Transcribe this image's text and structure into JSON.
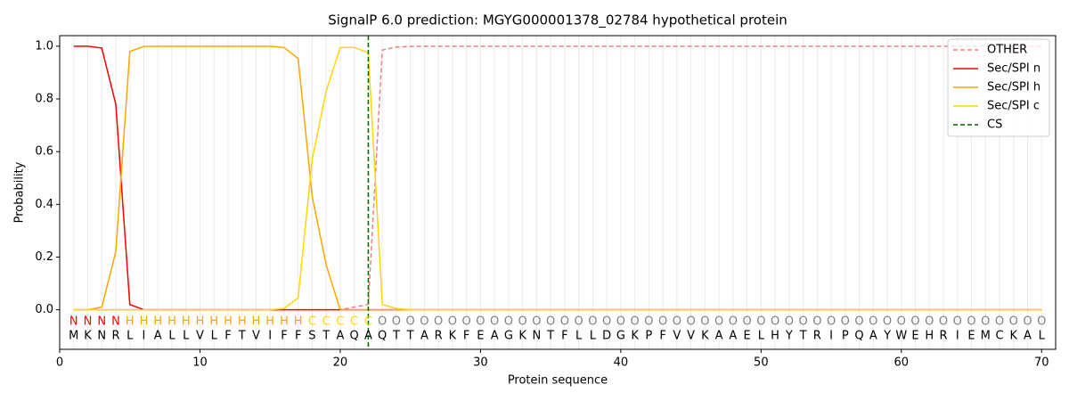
{
  "chart_data": {
    "type": "line",
    "title": "SignalP 6.0 prediction: MGYG000001378_02784 hypothetical protein",
    "xlabel": "Protein sequence",
    "ylabel": "Probability",
    "xlim": [
      0,
      71
    ],
    "ylim": [
      -0.15,
      1.04
    ],
    "xticks": [
      0,
      10,
      20,
      30,
      40,
      50,
      60,
      70
    ],
    "yticks": [
      {
        "value": 0,
        "label": "0.0"
      },
      {
        "value": 0.2,
        "label": "0.2"
      },
      {
        "value": 0.4,
        "label": "0.4"
      },
      {
        "value": 0.6,
        "label": "0.6"
      },
      {
        "value": 0.8,
        "label": "0.8"
      },
      {
        "value": 1,
        "label": "1.0"
      }
    ],
    "grid": true,
    "legend": "upper right",
    "x": [
      1,
      2,
      3,
      4,
      5,
      6,
      7,
      8,
      9,
      10,
      11,
      12,
      13,
      14,
      15,
      16,
      17,
      18,
      19,
      20,
      21,
      22,
      23,
      24,
      25,
      26,
      27,
      28,
      29,
      30,
      31,
      32,
      33,
      34,
      35,
      36,
      37,
      38,
      39,
      40,
      41,
      42,
      43,
      44,
      45,
      46,
      47,
      48,
      49,
      50,
      51,
      52,
      53,
      54,
      55,
      56,
      57,
      58,
      59,
      60,
      61,
      62,
      63,
      64,
      65,
      66,
      67,
      68,
      69,
      70
    ],
    "residues": [
      "M",
      "K",
      "N",
      "R",
      "L",
      "I",
      "A",
      "L",
      "L",
      "V",
      "L",
      "F",
      "T",
      "V",
      "I",
      "F",
      "F",
      "S",
      "T",
      "A",
      "Q",
      "A",
      "Q",
      "T",
      "T",
      "A",
      "R",
      "K",
      "F",
      "E",
      "A",
      "G",
      "K",
      "N",
      "T",
      "F",
      "L",
      "L",
      "D",
      "G",
      "K",
      "P",
      "F",
      "V",
      "V",
      "K",
      "A",
      "A",
      "E",
      "L",
      "H",
      "Y",
      "T",
      "R",
      "I",
      "P",
      "Q",
      "A",
      "Y",
      "W",
      "E",
      "H",
      "R",
      "I",
      "E",
      "M",
      "C",
      "K",
      "A",
      "L"
    ],
    "labels": [
      "N",
      "N",
      "N",
      "N",
      "H",
      "H",
      "H",
      "H",
      "H",
      "H",
      "H",
      "H",
      "H",
      "H",
      "H",
      "H",
      "H",
      "C",
      "C",
      "C",
      "C",
      "C",
      "O",
      "O",
      "O",
      "O",
      "O",
      "O",
      "O",
      "O",
      "O",
      "O",
      "O",
      "O",
      "O",
      "O",
      "O",
      "O",
      "O",
      "O",
      "O",
      "O",
      "O",
      "O",
      "O",
      "O",
      "O",
      "O",
      "O",
      "O",
      "O",
      "O",
      "O",
      "O",
      "O",
      "O",
      "O",
      "O",
      "O",
      "O",
      "O",
      "O",
      "O",
      "O",
      "O",
      "O",
      "O",
      "O",
      "O",
      "O"
    ],
    "label_colors": {
      "N": "#ff0000",
      "H": "#ffa500",
      "C": "#ffd700",
      "O": "#808080"
    },
    "series": [
      {
        "name": "OTHER",
        "color": "#f08080",
        "dashed": true,
        "values": [
          0,
          0,
          0,
          0,
          0,
          0,
          0,
          0,
          0,
          0,
          0,
          0,
          0,
          0,
          0,
          0,
          0,
          0,
          0,
          0,
          0.01,
          0.02,
          0.985,
          0.997,
          0.999,
          1,
          1,
          1,
          1,
          1,
          1,
          1,
          1,
          1,
          1,
          1,
          1,
          1,
          1,
          1,
          1,
          1,
          1,
          1,
          1,
          1,
          1,
          1,
          1,
          1,
          1,
          1,
          1,
          1,
          1,
          1,
          1,
          1,
          1,
          1,
          1,
          1,
          1,
          1,
          1,
          1,
          1,
          1,
          1,
          1
        ]
      },
      {
        "name": "Sec/SPI n",
        "color": "#ff0000",
        "dashed": false,
        "values": [
          1,
          1,
          0.993,
          0.78,
          0.02,
          0,
          0,
          0,
          0,
          0,
          0,
          0,
          0,
          0,
          0,
          0,
          0,
          0,
          0,
          0,
          0,
          0,
          0,
          0,
          0,
          0,
          0,
          0,
          0,
          0,
          0,
          0,
          0,
          0,
          0,
          0,
          0,
          0,
          0,
          0,
          0,
          0,
          0,
          0,
          0,
          0,
          0,
          0,
          0,
          0,
          0,
          0,
          0,
          0,
          0,
          0,
          0,
          0,
          0,
          0,
          0,
          0,
          0,
          0,
          0,
          0,
          0,
          0,
          0,
          0
        ]
      },
      {
        "name": "Sec/SPI h",
        "color": "#ffa500",
        "dashed": false,
        "values": [
          0,
          0,
          0.01,
          0.22,
          0.98,
          0.999,
          1,
          1,
          1,
          1,
          1,
          1,
          1,
          1,
          1,
          0.995,
          0.953,
          0.43,
          0.17,
          0,
          0,
          0,
          0,
          0,
          0,
          0,
          0,
          0,
          0,
          0,
          0,
          0,
          0,
          0,
          0,
          0,
          0,
          0,
          0,
          0,
          0,
          0,
          0,
          0,
          0,
          0,
          0,
          0,
          0,
          0,
          0,
          0,
          0,
          0,
          0,
          0,
          0,
          0,
          0,
          0,
          0,
          0,
          0,
          0,
          0,
          0,
          0,
          0,
          0,
          0
        ]
      },
      {
        "name": "Sec/SPI c",
        "color": "#ffd700",
        "dashed": false,
        "values": [
          0,
          0,
          0,
          0,
          0,
          0,
          0,
          0,
          0,
          0,
          0,
          0,
          0,
          0,
          0,
          0.005,
          0.045,
          0.57,
          0.83,
          0.995,
          0.995,
          0.975,
          0.02,
          0.005,
          0,
          0,
          0,
          0,
          0,
          0,
          0,
          0,
          0,
          0,
          0,
          0,
          0,
          0,
          0,
          0,
          0,
          0,
          0,
          0,
          0,
          0,
          0,
          0,
          0,
          0,
          0,
          0,
          0,
          0,
          0,
          0,
          0,
          0,
          0,
          0,
          0,
          0,
          0,
          0,
          0,
          0,
          0,
          0,
          0,
          0
        ]
      }
    ],
    "cs": {
      "name": "CS",
      "x": 22,
      "color": "#006400"
    }
  }
}
